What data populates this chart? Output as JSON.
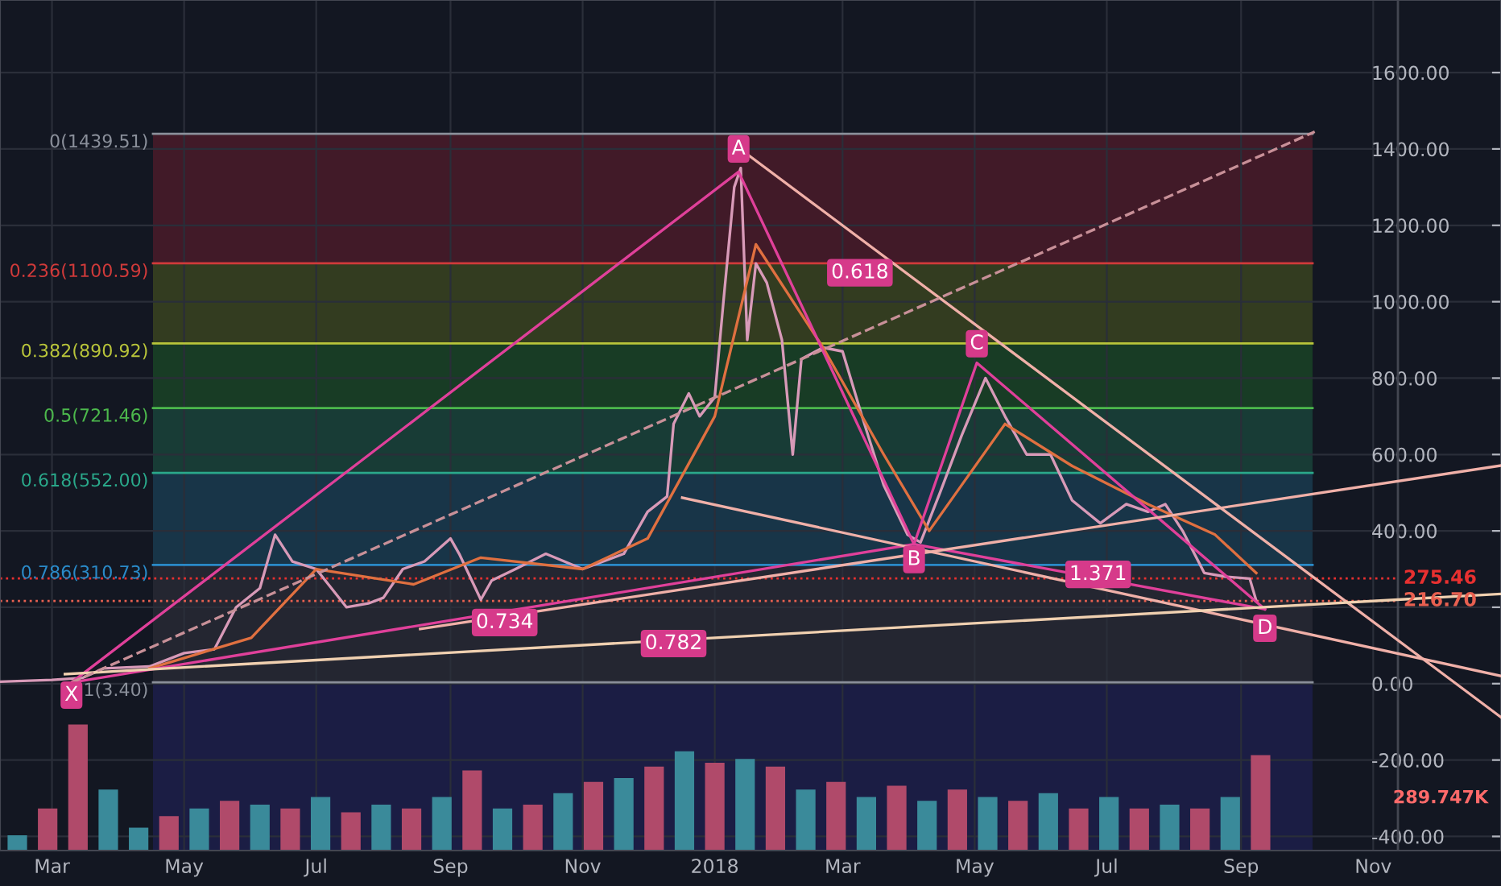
{
  "chart_data": {
    "type": "line",
    "xlim": [
      "2017-02-05",
      "2018-12-30"
    ],
    "ylim": [
      -437,
      1790
    ],
    "xticks": [
      {
        "value": "2017-03-01",
        "label": "Mar"
      },
      {
        "value": "2017-05-01",
        "label": "May"
      },
      {
        "value": "2017-07-01",
        "label": "Jul"
      },
      {
        "value": "2017-09-01",
        "label": "Sep"
      },
      {
        "value": "2017-11-01",
        "label": "Nov"
      },
      {
        "value": "2018-01-01",
        "label": "2018"
      },
      {
        "value": "2018-03-01",
        "label": "Mar"
      },
      {
        "value": "2018-05-01",
        "label": "May"
      },
      {
        "value": "2018-07-01",
        "label": "Jul"
      },
      {
        "value": "2018-09-01",
        "label": "Sep"
      },
      {
        "value": "2018-11-01",
        "label": "Nov"
      }
    ],
    "yticks": [
      {
        "value": 1600,
        "label": "1600.00"
      },
      {
        "value": 1400,
        "label": "1400.00"
      },
      {
        "value": 1200,
        "label": "1200.00"
      },
      {
        "value": 1000,
        "label": "1000.00"
      },
      {
        "value": 800,
        "label": "800.00"
      },
      {
        "value": 600,
        "label": "600.00"
      },
      {
        "value": 400,
        "label": "400.00"
      },
      {
        "value": 200,
        "label": null
      },
      {
        "value": 0,
        "label": "0.00"
      },
      {
        "value": -200,
        "label": "-200.00"
      },
      {
        "value": -400,
        "label": "-400.00"
      }
    ],
    "grid": true,
    "legend": false,
    "bands": [
      {
        "axis": "y",
        "from": 1100.59,
        "to": 1439.51,
        "color": "#7a2030"
      },
      {
        "axis": "y",
        "from": 890.92,
        "to": 1100.59,
        "color": "#5a6a20"
      },
      {
        "axis": "y",
        "from": 721.46,
        "to": 890.92,
        "color": "#1f6a2a"
      },
      {
        "axis": "y",
        "from": 552.0,
        "to": 721.46,
        "color": "#1f6a50"
      },
      {
        "axis": "y",
        "from": 310.73,
        "to": 552.0,
        "color": "#1f5a78"
      },
      {
        "axis": "y",
        "from": 3.4,
        "to": 310.73,
        "color": "#3a3a44"
      },
      {
        "axis": "y",
        "from": -437,
        "to": 3.4,
        "color": "#25256e"
      }
    ],
    "ref_lines": [
      {
        "axis": "y",
        "value": 1439.51,
        "label": "0(1439.51)",
        "color": "#8a8f9a",
        "line_style": "solid"
      },
      {
        "axis": "y",
        "value": 1100.59,
        "label": "0.236(1100.59)",
        "color": "#d03a3a",
        "line_style": "solid"
      },
      {
        "axis": "y",
        "value": 890.92,
        "label": "0.382(890.92)",
        "color": "#b8c43a",
        "line_style": "solid"
      },
      {
        "axis": "y",
        "value": 721.46,
        "label": "0.5(721.46)",
        "color": "#4cb84c",
        "line_style": "solid"
      },
      {
        "axis": "y",
        "value": 552.0,
        "label": "0.618(552.00)",
        "color": "#2aa88a",
        "line_style": "solid"
      },
      {
        "axis": "y",
        "value": 310.73,
        "label": "0.786(310.73)",
        "color": "#2a8ac8",
        "line_style": "solid"
      },
      {
        "axis": "y",
        "value": 3.4,
        "label": "1(3.40)",
        "color": "#8a8f9a",
        "line_style": "solid"
      },
      {
        "axis": "y",
        "value": 275.46,
        "label": "275.46",
        "color": "#e83030",
        "line_style": "dotted"
      },
      {
        "axis": "y",
        "value": 216.7,
        "label": "216.70",
        "color": "#e86050",
        "line_style": "dotted"
      }
    ],
    "series": [
      {
        "type": "line",
        "color": "#d89ab8",
        "x": [
          "2017-02-05",
          "2017-03-01",
          "2017-03-15",
          "2017-03-25",
          "2017-04-15",
          "2017-05-01",
          "2017-05-15",
          "2017-05-25",
          "2017-06-05",
          "2017-06-12",
          "2017-06-20",
          "2017-07-01",
          "2017-07-15",
          "2017-07-25",
          "2017-08-01",
          "2017-08-10",
          "2017-08-20",
          "2017-09-01",
          "2017-09-05",
          "2017-09-15",
          "2017-09-20",
          "2017-10-01",
          "2017-10-15",
          "2017-11-01",
          "2017-11-20",
          "2017-12-01",
          "2017-12-10",
          "2017-12-13",
          "2017-12-20",
          "2017-12-25",
          "2018-01-01",
          "2018-01-05",
          "2018-01-10",
          "2018-01-13",
          "2018-01-16",
          "2018-01-20",
          "2018-01-25",
          "2018-02-01",
          "2018-02-06",
          "2018-02-10",
          "2018-02-20",
          "2018-03-01",
          "2018-03-10",
          "2018-03-20",
          "2018-03-31",
          "2018-04-06",
          "2018-04-15",
          "2018-04-25",
          "2018-05-06",
          "2018-05-15",
          "2018-05-25",
          "2018-06-05",
          "2018-06-15",
          "2018-06-28",
          "2018-07-10",
          "2018-07-20",
          "2018-07-28",
          "2018-08-05",
          "2018-08-15",
          "2018-08-25",
          "2018-09-05",
          "2018-09-08"
        ],
        "values": [
          5,
          10,
          15,
          40,
          45,
          80,
          90,
          200,
          250,
          390,
          320,
          300,
          200,
          210,
          225,
          300,
          320,
          380,
          340,
          220,
          270,
          300,
          340,
          300,
          340,
          450,
          490,
          680,
          760,
          700,
          750,
          1000,
          1300,
          1350,
          900,
          1100,
          1050,
          900,
          600,
          850,
          880,
          870,
          700,
          520,
          390,
          370,
          500,
          650,
          800,
          700,
          600,
          600,
          480,
          420,
          470,
          450,
          470,
          400,
          290,
          280,
          275,
          217
        ]
      },
      {
        "type": "line",
        "color": "#e07040",
        "x": [
          "2017-04-15",
          "2017-06-01",
          "2017-07-01",
          "2017-08-15",
          "2017-09-15",
          "2017-11-01",
          "2017-12-01",
          "2018-01-01",
          "2018-01-20",
          "2018-02-20",
          "2018-03-20",
          "2018-04-10",
          "2018-05-15",
          "2018-06-15",
          "2018-07-20",
          "2018-08-20",
          "2018-09-08"
        ],
        "values": [
          40,
          120,
          300,
          260,
          330,
          300,
          380,
          700,
          1150,
          880,
          600,
          400,
          680,
          570,
          470,
          390,
          290
        ]
      },
      {
        "color": "#e0409a",
        "x": [
          "2017-03-10",
          "2018-01-12",
          "2018-04-03",
          "2018-05-02",
          "2018-09-12"
        ],
        "values": [
          3,
          1340,
          365,
          840,
          195
        ]
      },
      {
        "color": "#e0409a",
        "x": [
          "2017-03-10",
          "2018-04-03",
          "2018-09-12"
        ],
        "values": [
          3,
          365,
          195
        ]
      },
      {
        "type": "line",
        "color": "#f0b0a8",
        "x": [
          "2018-01-12",
          "2018-12-30"
        ],
        "values": [
          1403,
          -88
        ]
      },
      {
        "type": "line",
        "color": "#f0b0a8",
        "x": [
          "2017-12-17",
          "2018-12-30"
        ],
        "values": [
          487,
          20
        ]
      },
      {
        "type": "line",
        "color": "#f0b0a8",
        "x": [
          "2017-08-18",
          "2018-12-30"
        ],
        "values": [
          143,
          571
        ]
      },
      {
        "type": "line",
        "color": "#f0d0b0",
        "x": [
          "2017-03-07",
          "2018-12-30"
        ],
        "values": [
          25,
          235
        ]
      },
      {
        "type": "line",
        "color": "#c89098",
        "line_style": "dashed",
        "x": [
          "2017-03-10",
          "2018-10-05"
        ],
        "values": [
          3,
          1445
        ]
      },
      {
        "type": "bar",
        "color": "#3a8a9a",
        "x": [
          "2017-02-13",
          "2017-02-27",
          "2017-03-13",
          "2017-03-27",
          "2017-04-10",
          "2017-04-24",
          "2017-05-08",
          "2017-05-22",
          "2017-06-05",
          "2017-06-19",
          "2017-07-03",
          "2017-07-17",
          "2017-07-31",
          "2017-08-14",
          "2017-08-28",
          "2017-09-11",
          "2017-09-25",
          "2017-10-09",
          "2017-10-23",
          "2017-11-06",
          "2017-11-20",
          "2017-12-04",
          "2017-12-18",
          "2018-01-01",
          "2018-01-15",
          "2018-01-29",
          "2018-02-12",
          "2018-02-26",
          "2018-03-12",
          "2018-03-26",
          "2018-04-09",
          "2018-04-23",
          "2018-05-07",
          "2018-05-21",
          "2018-06-04",
          "2018-06-18",
          "2018-07-02",
          "2018-07-16",
          "2018-07-30",
          "2018-08-13",
          "2018-08-27",
          "2018-09-10"
        ],
        "colors": [
          "#3a8a9a",
          "#b04a6a",
          "#b04a6a",
          "#3a8a9a",
          "#3a8a9a",
          "#b04a6a",
          "#3a8a9a",
          "#b04a6a",
          "#3a8a9a",
          "#b04a6a",
          "#3a8a9a",
          "#b04a6a",
          "#3a8a9a",
          "#b04a6a",
          "#3a8a9a",
          "#b04a6a",
          "#3a8a9a",
          "#b04a6a",
          "#3a8a9a",
          "#b04a6a",
          "#3a8a9a",
          "#b04a6a",
          "#3a8a9a",
          "#b04a6a",
          "#3a8a9a",
          "#b04a6a",
          "#3a8a9a",
          "#b04a6a",
          "#3a8a9a",
          "#b04a6a",
          "#3a8a9a",
          "#b04a6a",
          "#3a8a9a",
          "#b04a6a",
          "#3a8a9a",
          "#b04a6a",
          "#3a8a9a",
          "#b04a6a",
          "#3a8a9a",
          "#b04a6a",
          "#3a8a9a",
          "#b04a6a"
        ],
        "base": [
          -437,
          -437,
          -437,
          -437,
          -437,
          -437,
          -437,
          -437,
          -437,
          -437,
          -437,
          -437,
          -437,
          -437,
          -437,
          -437,
          -437,
          -437,
          -437,
          -437,
          -437,
          -437,
          -437,
          -437,
          -437,
          -437,
          -437,
          -437,
          -437,
          -437,
          -437,
          -437,
          -437,
          -437,
          -437,
          -437,
          -437,
          -437,
          -437,
          -437,
          -437,
          -437
        ],
        "values": [
          40,
          110,
          330,
          160,
          60,
          90,
          110,
          130,
          120,
          110,
          140,
          100,
          120,
          110,
          140,
          210,
          110,
          120,
          150,
          180,
          190,
          220,
          260,
          230,
          240,
          220,
          160,
          180,
          140,
          170,
          130,
          160,
          140,
          130,
          150,
          110,
          140,
          110,
          120,
          110,
          140,
          250
        ]
      }
    ],
    "annotations": [
      {
        "text": "X",
        "x": "2017-03-10",
        "y": -30
      },
      {
        "text": "A",
        "x": "2018-01-12",
        "y": 1400
      },
      {
        "text": "B",
        "x": "2018-04-03",
        "y": 325
      },
      {
        "text": "C",
        "x": "2018-05-02",
        "y": 890
      },
      {
        "text": "D",
        "x": "2018-09-12",
        "y": 145
      },
      {
        "text": "0.618",
        "x": "2018-03-09",
        "y": 1076
      },
      {
        "text": "0.734",
        "x": "2017-09-26",
        "y": 160
      },
      {
        "text": "0.782",
        "x": "2017-12-13",
        "y": 105
      },
      {
        "text": "1.371",
        "x": "2018-06-27",
        "y": 286
      },
      "289.747K"
    ]
  }
}
